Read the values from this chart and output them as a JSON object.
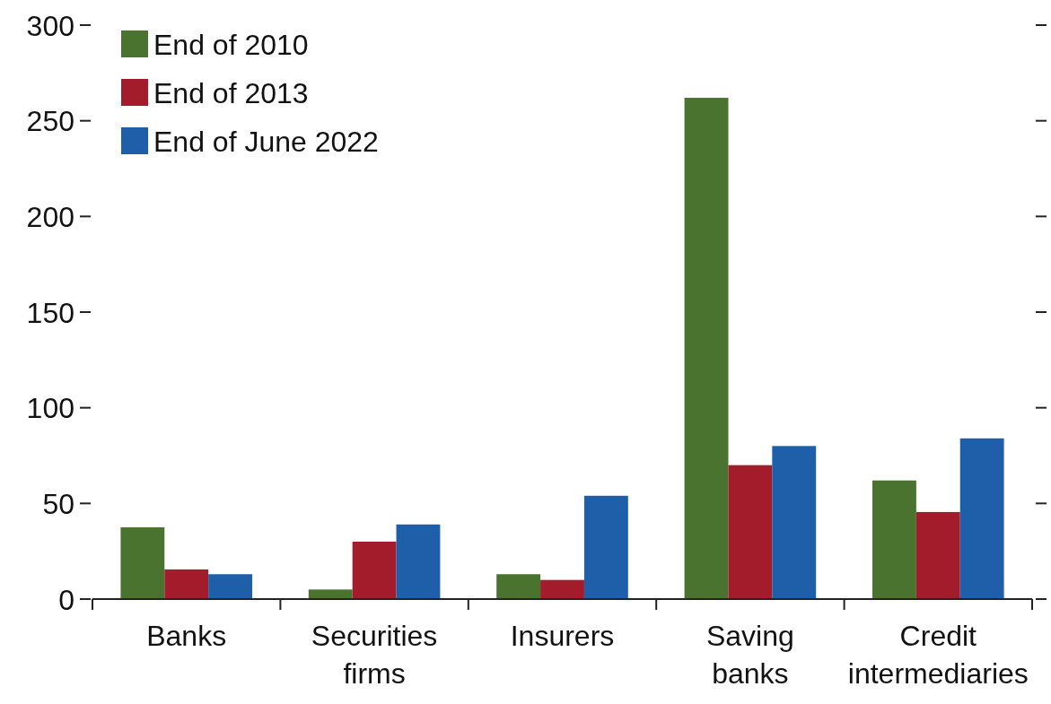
{
  "chart_data": {
    "type": "bar",
    "categories": [
      "Banks",
      "Securities firms",
      "Insurers",
      "Saving banks",
      "Credit intermediaries"
    ],
    "series": [
      {
        "name": "End of 2010",
        "color": "#4a7330",
        "values": [
          37.5,
          5,
          13,
          262,
          62
        ]
      },
      {
        "name": "End of 2013",
        "color": "#a31c2c",
        "values": [
          15.5,
          30,
          10,
          70,
          45.5
        ]
      },
      {
        "name": "End of June 2022",
        "color": "#1f5ea8",
        "values": [
          13,
          39,
          54,
          80,
          84
        ]
      }
    ],
    "ylim": [
      0,
      300
    ],
    "yticks": [
      0,
      50,
      100,
      150,
      200,
      250,
      300
    ],
    "legend": "top left"
  }
}
